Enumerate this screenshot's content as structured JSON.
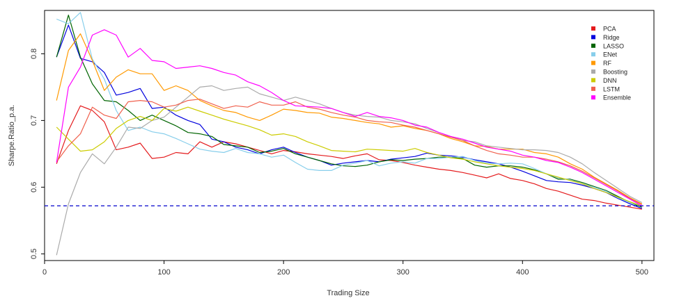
{
  "chart_data": {
    "type": "line",
    "xlabel": "Trading Size",
    "ylabel": "Sharpe.Ratio_p.a.",
    "xlim": [
      0,
      510
    ],
    "ylim": [
      0.49,
      0.865
    ],
    "xticks": [
      0,
      100,
      200,
      300,
      400,
      500
    ],
    "yticks": [
      0.5,
      0.6,
      0.7,
      0.8
    ],
    "xtick_labels": [
      "0",
      "100",
      "200",
      "300",
      "400",
      "500"
    ],
    "ytick_labels": [
      "0.5",
      "0.6",
      "0.7",
      "0.8"
    ],
    "grid": false,
    "legend_position": "top-right",
    "reference_line": {
      "y": 0.572,
      "color": "#0000cc",
      "style": "dashed"
    },
    "x": [
      10,
      20,
      30,
      40,
      50,
      60,
      70,
      80,
      90,
      100,
      110,
      120,
      130,
      140,
      150,
      160,
      170,
      180,
      190,
      200,
      210,
      220,
      230,
      240,
      250,
      260,
      270,
      280,
      290,
      300,
      310,
      320,
      330,
      340,
      350,
      360,
      370,
      380,
      390,
      400,
      410,
      420,
      430,
      440,
      450,
      460,
      470,
      480,
      490,
      500
    ],
    "series": [
      {
        "name": "PCA",
        "color": "#e41a1c",
        "values": [
          0.635,
          0.685,
          0.722,
          0.715,
          0.698,
          0.656,
          0.66,
          0.666,
          0.643,
          0.645,
          0.652,
          0.65,
          0.668,
          0.66,
          0.668,
          0.665,
          0.66,
          0.655,
          0.65,
          0.655,
          0.653,
          0.65,
          0.648,
          0.646,
          0.643,
          0.647,
          0.65,
          0.641,
          0.64,
          0.637,
          0.633,
          0.63,
          0.627,
          0.625,
          0.622,
          0.618,
          0.614,
          0.62,
          0.613,
          0.61,
          0.605,
          0.598,
          0.594,
          0.588,
          0.582,
          0.58,
          0.576,
          0.573,
          0.57,
          0.567
        ]
      },
      {
        "name": "Ridge",
        "color": "#0000dd",
        "values": [
          0.795,
          0.843,
          0.793,
          0.788,
          0.772,
          0.738,
          0.742,
          0.748,
          0.718,
          0.72,
          0.708,
          0.7,
          0.694,
          0.672,
          0.668,
          0.66,
          0.656,
          0.65,
          0.656,
          0.66,
          0.652,
          0.645,
          0.64,
          0.633,
          0.636,
          0.638,
          0.64,
          0.638,
          0.642,
          0.644,
          0.646,
          0.651,
          0.648,
          0.647,
          0.645,
          0.641,
          0.638,
          0.635,
          0.63,
          0.624,
          0.617,
          0.61,
          0.608,
          0.607,
          0.603,
          0.598,
          0.592,
          0.583,
          0.575,
          0.568
        ]
      },
      {
        "name": "LASSO",
        "color": "#006400",
        "values": [
          0.795,
          0.858,
          0.795,
          0.755,
          0.73,
          0.728,
          0.715,
          0.7,
          0.708,
          0.7,
          0.692,
          0.682,
          0.68,
          0.676,
          0.664,
          0.662,
          0.66,
          0.652,
          0.654,
          0.658,
          0.65,
          0.645,
          0.64,
          0.635,
          0.632,
          0.631,
          0.633,
          0.638,
          0.641,
          0.64,
          0.642,
          0.643,
          0.645,
          0.645,
          0.643,
          0.633,
          0.63,
          0.632,
          0.632,
          0.63,
          0.626,
          0.62,
          0.612,
          0.612,
          0.607,
          0.601,
          0.595,
          0.586,
          0.577,
          0.57
        ]
      },
      {
        "name": "ENet",
        "color": "#87ceeb",
        "values": [
          0.852,
          0.845,
          0.862,
          0.792,
          0.762,
          0.715,
          0.685,
          0.69,
          0.683,
          0.68,
          0.673,
          0.665,
          0.657,
          0.654,
          0.652,
          0.658,
          0.652,
          0.65,
          0.645,
          0.648,
          0.637,
          0.627,
          0.625,
          0.625,
          0.633,
          0.636,
          0.64,
          0.632,
          0.636,
          0.638,
          0.636,
          0.643,
          0.643,
          0.645,
          0.646,
          0.64,
          0.636,
          0.635,
          0.636,
          0.635,
          0.628,
          0.62,
          0.614,
          0.611,
          0.605,
          0.6,
          0.594,
          0.584,
          0.577,
          0.572
        ]
      },
      {
        "name": "RF",
        "color": "#ff9900",
        "values": [
          0.73,
          0.805,
          0.83,
          0.79,
          0.745,
          0.765,
          0.776,
          0.77,
          0.77,
          0.745,
          0.752,
          0.745,
          0.73,
          0.722,
          0.715,
          0.712,
          0.705,
          0.7,
          0.708,
          0.717,
          0.715,
          0.712,
          0.711,
          0.705,
          0.703,
          0.7,
          0.697,
          0.695,
          0.69,
          0.692,
          0.688,
          0.685,
          0.68,
          0.673,
          0.668,
          0.662,
          0.661,
          0.657,
          0.657,
          0.657,
          0.652,
          0.65,
          0.645,
          0.635,
          0.627,
          0.615,
          0.605,
          0.595,
          0.584,
          0.575
        ]
      },
      {
        "name": "Boosting",
        "color": "#aaaaaa",
        "values": [
          0.498,
          0.575,
          0.622,
          0.65,
          0.635,
          0.66,
          0.69,
          0.688,
          0.7,
          0.705,
          0.72,
          0.735,
          0.75,
          0.752,
          0.745,
          0.748,
          0.75,
          0.74,
          0.735,
          0.73,
          0.735,
          0.73,
          0.725,
          0.718,
          0.712,
          0.708,
          0.706,
          0.705,
          0.7,
          0.698,
          0.695,
          0.688,
          0.682,
          0.676,
          0.67,
          0.668,
          0.662,
          0.66,
          0.658,
          0.656,
          0.656,
          0.655,
          0.652,
          0.645,
          0.635,
          0.622,
          0.61,
          0.598,
          0.586,
          0.577
        ]
      },
      {
        "name": "DNN",
        "color": "#cccc00",
        "values": [
          0.69,
          0.672,
          0.654,
          0.656,
          0.668,
          0.688,
          0.7,
          0.706,
          0.7,
          0.718,
          0.714,
          0.72,
          0.714,
          0.708,
          0.702,
          0.697,
          0.692,
          0.686,
          0.678,
          0.68,
          0.676,
          0.668,
          0.662,
          0.655,
          0.654,
          0.653,
          0.657,
          0.656,
          0.655,
          0.654,
          0.658,
          0.652,
          0.648,
          0.644,
          0.642,
          0.638,
          0.635,
          0.632,
          0.63,
          0.628,
          0.625,
          0.62,
          0.615,
          0.61,
          0.605,
          0.598,
          0.592,
          0.585,
          0.578,
          0.572
        ]
      },
      {
        "name": "LSTM",
        "color": "#f0604d",
        "values": [
          0.638,
          0.662,
          0.68,
          0.72,
          0.708,
          0.703,
          0.728,
          0.73,
          0.728,
          0.72,
          0.723,
          0.73,
          0.732,
          0.725,
          0.718,
          0.722,
          0.72,
          0.728,
          0.723,
          0.723,
          0.728,
          0.72,
          0.717,
          0.712,
          0.708,
          0.705,
          0.7,
          0.698,
          0.697,
          0.693,
          0.69,
          0.685,
          0.68,
          0.675,
          0.67,
          0.662,
          0.655,
          0.65,
          0.648,
          0.645,
          0.645,
          0.642,
          0.638,
          0.632,
          0.624,
          0.614,
          0.604,
          0.594,
          0.583,
          0.574
        ]
      },
      {
        "name": "Ensemble",
        "color": "#ff00ff",
        "values": [
          0.637,
          0.75,
          0.78,
          0.828,
          0.836,
          0.828,
          0.795,
          0.808,
          0.79,
          0.788,
          0.778,
          0.78,
          0.782,
          0.778,
          0.772,
          0.768,
          0.758,
          0.752,
          0.742,
          0.73,
          0.722,
          0.721,
          0.72,
          0.718,
          0.712,
          0.706,
          0.712,
          0.706,
          0.704,
          0.7,
          0.693,
          0.69,
          0.682,
          0.676,
          0.672,
          0.666,
          0.66,
          0.657,
          0.654,
          0.648,
          0.645,
          0.64,
          0.637,
          0.63,
          0.622,
          0.612,
          0.602,
          0.592,
          0.582,
          0.572
        ]
      }
    ]
  }
}
